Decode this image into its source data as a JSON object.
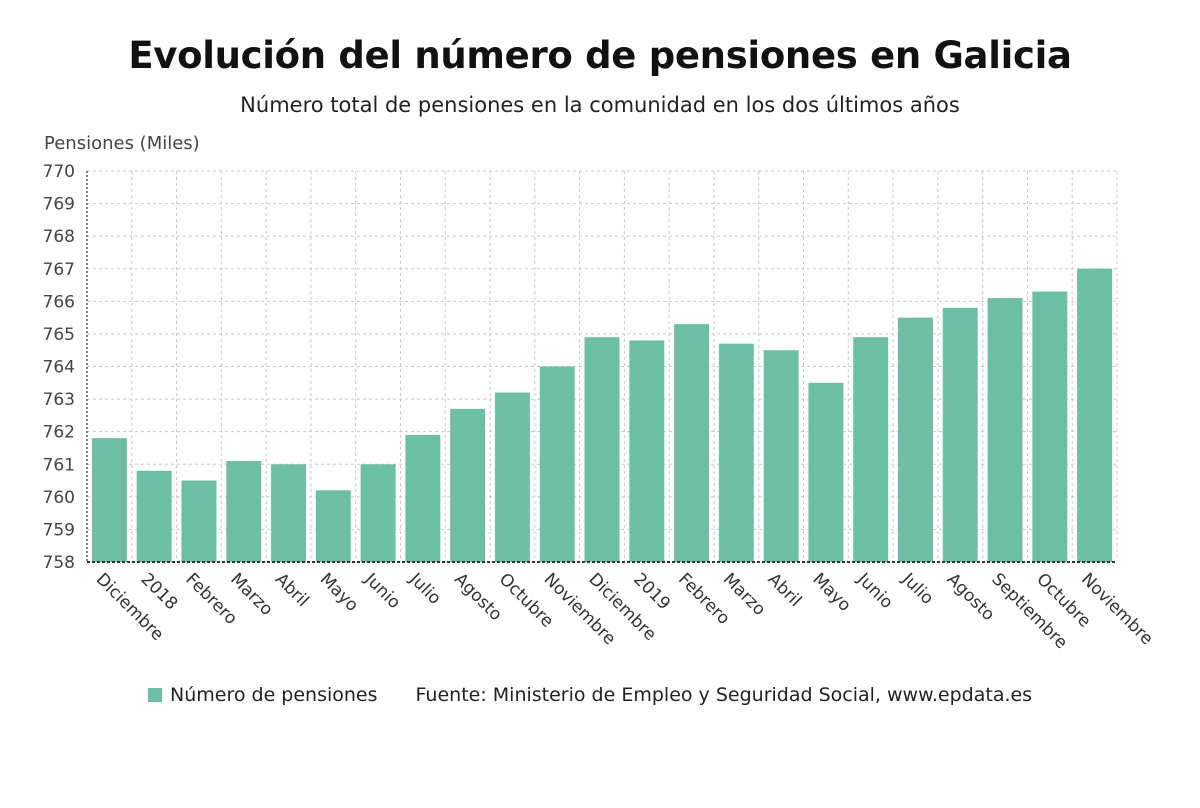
{
  "chart_data": {
    "type": "bar",
    "title": "Evolución del número de pensiones en Galicia",
    "subtitle": "Número total de pensiones en la comunidad en los dos últimos años",
    "ylabel": "Pensiones (Miles)",
    "ylim": [
      758,
      770
    ],
    "yticks": [
      758,
      759,
      760,
      761,
      762,
      763,
      764,
      765,
      766,
      767,
      768,
      769,
      770
    ],
    "grid": true,
    "categories": [
      "Diciembre",
      "2018",
      "Febrero",
      "Marzo",
      "Abril",
      "Mayo",
      "Junio",
      "Julio",
      "Agosto",
      "Octubre",
      "Noviembre",
      "Diciembre",
      "2019",
      "Febrero",
      "Marzo",
      "Abril",
      "Mayo",
      "Junio",
      "Julio",
      "Agosto",
      "Septiembre",
      "Octubre",
      "Noviembre"
    ],
    "series": [
      {
        "name": "Número de pensiones",
        "color": "#6cbea4",
        "values": [
          761.8,
          760.8,
          760.5,
          761.1,
          761.0,
          760.2,
          761.0,
          761.9,
          762.7,
          763.2,
          764.0,
          764.9,
          764.8,
          765.3,
          764.7,
          764.5,
          763.5,
          764.9,
          765.5,
          765.8,
          766.1,
          766.3,
          767.0
        ]
      }
    ],
    "legend_position": "bottom-left"
  },
  "footer": {
    "legend_label": "Número de pensiones",
    "source": "Fuente: Ministerio de Empleo y Seguridad Social, www.epdata.es"
  }
}
